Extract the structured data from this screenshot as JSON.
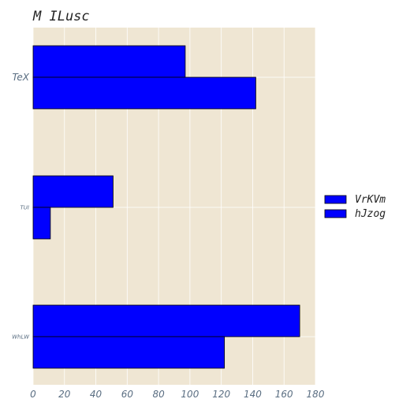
{
  "chart_data": {
    "type": "bar",
    "orientation": "horizontal",
    "title": "M ILusc",
    "xlabel": "",
    "ylabel": "",
    "categories": [
      "TeX",
      "TUI",
      "WhLW"
    ],
    "series": [
      {
        "name": "VrKVm",
        "values": [
          97,
          51,
          170
        ],
        "color": "#0000ff"
      },
      {
        "name": "hJzog",
        "values": [
          142,
          11,
          122
        ],
        "color": "#0000ff"
      }
    ],
    "xlim": [
      0,
      180
    ],
    "xticks": [
      "0",
      "20",
      "40",
      "60",
      "80",
      "100",
      "120",
      "140",
      "160",
      "180"
    ],
    "grid": true,
    "legend_position": "right",
    "plot_background": "#efe6d3",
    "bar_edge_color": "#000000",
    "grid_color": "#ffffff"
  }
}
